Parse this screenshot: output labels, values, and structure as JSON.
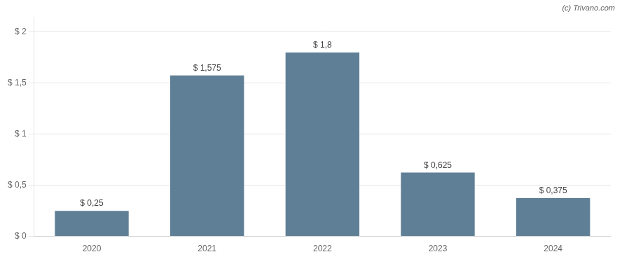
{
  "chart_data": {
    "type": "bar",
    "categories": [
      "2020",
      "2021",
      "2022",
      "2023",
      "2024"
    ],
    "values": [
      0.25,
      1.575,
      1.8,
      0.625,
      0.375
    ],
    "value_labels": [
      "$ 0,25",
      "$ 1,575",
      "$ 1,8",
      "$ 0,625",
      "$ 0,375"
    ],
    "data_labels": true,
    "color": "#5f7f96",
    "ylim": [
      0,
      2.15
    ],
    "yticks": [
      {
        "value": 0,
        "label": "$ 0"
      },
      {
        "value": 0.5,
        "label": "$ 0,5"
      },
      {
        "value": 1.0,
        "label": "$ 1"
      },
      {
        "value": 1.5,
        "label": "$ 1,5"
      },
      {
        "value": 2.0,
        "label": "$ 2"
      }
    ],
    "grid": true,
    "annotations": [
      "(c) Trivano.com"
    ]
  }
}
